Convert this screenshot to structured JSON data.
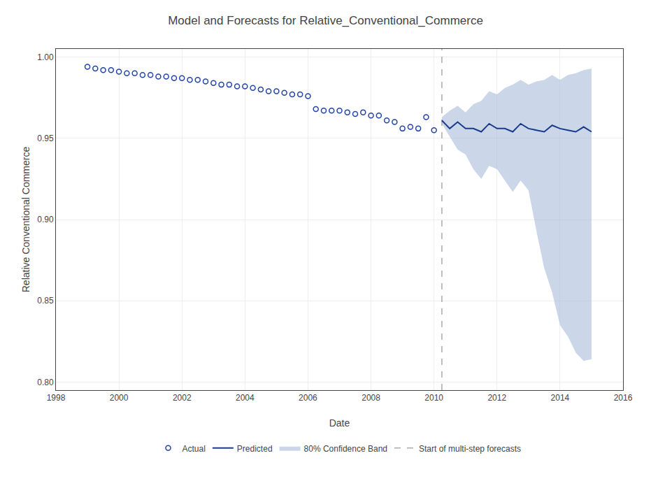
{
  "chart_data": {
    "type": "line",
    "title": "Model and Forecasts for Relative_Conventional_Commerce",
    "xlabel": "Date",
    "ylabel": "Relative Conventional Commerce",
    "xlim": [
      1998,
      2016
    ],
    "ylim": [
      0.795,
      1.005
    ],
    "xticks": [
      1998,
      2000,
      2002,
      2004,
      2006,
      2008,
      2010,
      2012,
      2014,
      2016
    ],
    "yticks": [
      {
        "value": 0.8,
        "label": "0.80"
      },
      {
        "value": 0.85,
        "label": "0.85"
      },
      {
        "value": 0.9,
        "label": "0.90"
      },
      {
        "value": 0.95,
        "label": "0.95"
      },
      {
        "value": 1.0,
        "label": "1.00"
      }
    ],
    "grid": true,
    "legend": "bottom",
    "series": [
      {
        "name": "Actual",
        "type": "scatter",
        "marker": "circle",
        "color": "#2244aa",
        "x": [
          1999.0,
          1999.25,
          1999.5,
          1999.75,
          2000.0,
          2000.25,
          2000.5,
          2000.75,
          2001.0,
          2001.25,
          2001.5,
          2001.75,
          2002.0,
          2002.25,
          2002.5,
          2002.75,
          2003.0,
          2003.25,
          2003.5,
          2003.75,
          2004.0,
          2004.25,
          2004.5,
          2004.75,
          2005.0,
          2005.25,
          2005.5,
          2005.75,
          2006.0,
          2006.25,
          2006.5,
          2006.75,
          2007.0,
          2007.25,
          2007.5,
          2007.75,
          2008.0,
          2008.25,
          2008.5,
          2008.75,
          2009.0,
          2009.25,
          2009.5,
          2009.75,
          2010.0
        ],
        "values": [
          0.994,
          0.993,
          0.992,
          0.992,
          0.991,
          0.99,
          0.99,
          0.989,
          0.989,
          0.988,
          0.988,
          0.987,
          0.987,
          0.986,
          0.986,
          0.985,
          0.984,
          0.983,
          0.983,
          0.982,
          0.982,
          0.981,
          0.98,
          0.979,
          0.979,
          0.978,
          0.977,
          0.977,
          0.976,
          0.968,
          0.967,
          0.967,
          0.967,
          0.966,
          0.965,
          0.966,
          0.964,
          0.964,
          0.961,
          0.96,
          0.956,
          0.957,
          0.956,
          0.963,
          0.955
        ]
      },
      {
        "name": "Predicted",
        "type": "line",
        "color": "#1a3a8c",
        "x": [
          2010.25,
          2010.5,
          2010.75,
          2011.0,
          2011.25,
          2011.5,
          2011.75,
          2012.0,
          2012.25,
          2012.5,
          2012.75,
          2013.0,
          2013.25,
          2013.5,
          2013.75,
          2014.0,
          2014.25,
          2014.5,
          2014.75,
          2015.0
        ],
        "values": [
          0.961,
          0.956,
          0.96,
          0.956,
          0.956,
          0.954,
          0.959,
          0.956,
          0.956,
          0.954,
          0.959,
          0.956,
          0.955,
          0.954,
          0.958,
          0.956,
          0.955,
          0.954,
          0.957,
          0.954
        ]
      },
      {
        "name": "80% Confidence Band",
        "type": "band",
        "color": "#a8bcd8",
        "x": [
          2010.25,
          2010.5,
          2010.75,
          2011.0,
          2011.25,
          2011.5,
          2011.75,
          2012.0,
          2012.25,
          2012.5,
          2012.75,
          2013.0,
          2013.25,
          2013.5,
          2013.75,
          2014.0,
          2014.25,
          2014.5,
          2014.75,
          2015.0
        ],
        "upper": [
          0.963,
          0.967,
          0.97,
          0.966,
          0.971,
          0.973,
          0.979,
          0.977,
          0.981,
          0.983,
          0.986,
          0.983,
          0.985,
          0.986,
          0.989,
          0.986,
          0.989,
          0.99,
          0.992,
          0.993
        ],
        "lower": [
          0.959,
          0.951,
          0.943,
          0.94,
          0.931,
          0.925,
          0.933,
          0.931,
          0.924,
          0.917,
          0.924,
          0.918,
          0.893,
          0.87,
          0.855,
          0.835,
          0.828,
          0.818,
          0.813,
          0.814
        ]
      },
      {
        "name": "Start of multi-step forecasts",
        "type": "vline",
        "color": "#aaaaaa",
        "line_style": "dashed",
        "x": 2010.25
      }
    ]
  }
}
